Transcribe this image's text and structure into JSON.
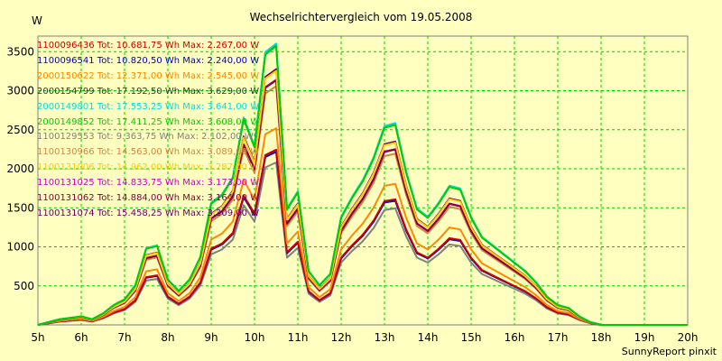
{
  "chart_data": {
    "type": "line",
    "title": "Wechselrichtervergleich vom 19.05.2008",
    "ylabel": "W",
    "xlabel": "",
    "footer": "SunnyReport pinxit",
    "ylim": [
      0,
      3700
    ],
    "yticks": [
      500,
      1000,
      1500,
      2000,
      2500,
      3000,
      3500
    ],
    "xticks": [
      "5h",
      "6h",
      "7h",
      "8h",
      "9h",
      "10h",
      "11h",
      "12h",
      "13h",
      "14h",
      "15h",
      "16h",
      "17h",
      "18h",
      "19h",
      "20h"
    ],
    "grid": true,
    "grid_color": "#00cc00",
    "background": "#ffffc0",
    "legend_position": "top-left",
    "x": [
      5.0,
      5.25,
      5.5,
      5.75,
      6.0,
      6.25,
      6.5,
      6.75,
      7.0,
      7.25,
      7.5,
      7.75,
      8.0,
      8.25,
      8.5,
      8.75,
      9.0,
      9.25,
      9.5,
      9.75,
      10.0,
      10.25,
      10.5,
      10.75,
      11.0,
      11.25,
      11.5,
      11.75,
      12.0,
      12.25,
      12.5,
      12.75,
      13.0,
      13.25,
      13.5,
      13.75,
      14.0,
      14.25,
      14.5,
      14.75,
      15.0,
      15.25,
      15.5,
      15.75,
      16.0,
      16.25,
      16.5,
      16.75,
      17.0,
      17.25,
      17.5,
      17.75,
      18.0,
      18.25,
      18.5,
      18.75,
      19.0,
      19.25,
      19.5,
      19.75,
      20.0
    ],
    "shape": [
      0.0,
      0.01,
      0.02,
      0.025,
      0.03,
      0.02,
      0.04,
      0.07,
      0.09,
      0.14,
      0.27,
      0.28,
      0.16,
      0.12,
      0.16,
      0.24,
      0.43,
      0.46,
      0.52,
      0.73,
      0.63,
      0.96,
      0.99,
      0.41,
      0.47,
      0.19,
      0.14,
      0.18,
      0.38,
      0.45,
      0.51,
      0.59,
      0.7,
      0.71,
      0.54,
      0.41,
      0.38,
      0.43,
      0.49,
      0.48,
      0.38,
      0.31,
      0.28,
      0.25,
      0.22,
      0.19,
      0.15,
      0.1,
      0.07,
      0.06,
      0.03,
      0.01,
      0.0,
      0.0,
      0.0,
      0.0,
      0.0,
      0.0,
      0.0,
      0.0,
      0.0
    ],
    "series": [
      {
        "name": "1100096436",
        "label": "1100096436 Tot: 10.681,75 Wh Max: 2.267,00 W",
        "color": "#cc0000",
        "max": 2267
      },
      {
        "name": "1100096541",
        "label": "1100096541 Tot: 10.820,50 Wh Max: 2.240,00 W",
        "color": "#0000cc",
        "max": 2240
      },
      {
        "name": "2000150622",
        "label": "2000150622 Tot: 12.371,00 Wh Max: 2.545,00 W",
        "color": "#ff8800",
        "max": 2545
      },
      {
        "name": "2000154799",
        "label": "2000154799 Tot: 17.192,50 Wh Max: 3.629,00 W",
        "color": "#333333",
        "max": 3629
      },
      {
        "name": "2000149801",
        "label": "2000149801 Tot: 17.553,25 Wh Max: 3.641,00 W",
        "color": "#00dddd",
        "max": 3641
      },
      {
        "name": "2000149852",
        "label": "2000149852 Tot: 17.411,25 Wh Max: 3.608,00 W",
        "color": "#00cc00",
        "max": 3608
      },
      {
        "name": "1100129553",
        "label": "1100129553 Tot: 9.363,75 Wh Max: 2.102,00 W",
        "color": "#808080",
        "max": 2102
      },
      {
        "name": "1100130966",
        "label": "1100130966 Tot: 14.563,00 Wh Max: 3.089,00 W",
        "color": "#cc8844",
        "max": 3089
      },
      {
        "name": "1100131006",
        "label": "1100131006 Tot: 14.962,00 Wh Max: 3.287,00 W",
        "color": "#ffcc00",
        "max": 3287
      },
      {
        "name": "1100131025",
        "label": "1100131025 Tot: 14.833,75 Wh Max: 3.173,00 W",
        "color": "#cc00cc",
        "max": 3173
      },
      {
        "name": "1100131062",
        "label": "1100131062 Tot: 14.884,00 Wh Max: 3.164,00 W",
        "color": "#880044",
        "max": 3164
      },
      {
        "name": "1100131074",
        "label": "1100131074 Tot: 15.458,25 Wh Max: 3.309,00 W",
        "color": "#660066",
        "max": 3309
      }
    ]
  }
}
